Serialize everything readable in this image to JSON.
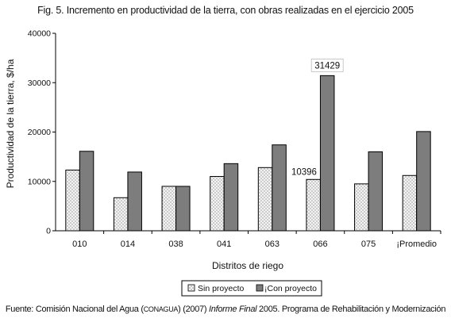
{
  "figure": {
    "title": "Fig. 5. Incremento en productividad de la tierra, con obras realizadas en el ejercicio 2005"
  },
  "source": {
    "prefix": "Fuente: Comisión Nacional del Agua (",
    "agency_abbrev": "CONAGUA",
    "middle": ") (2007) ",
    "report_title": "Informe Final",
    "suffix": " 2005. Programa de Rehabilitación y  Modernización"
  },
  "chart_data": {
    "type": "bar",
    "categories": [
      "010",
      "014",
      "038",
      "041",
      "063",
      "066",
      "075",
      "¡Promedio"
    ],
    "series": [
      {
        "name": "Sin proyecto",
        "values": [
          12300,
          6700,
          9000,
          11000,
          12800,
          10396,
          9500,
          11200
        ],
        "pattern": "dotted-light"
      },
      {
        "name": "¡Con proyecto",
        "values": [
          16100,
          11900,
          9000,
          13600,
          17400,
          31429,
          16000,
          20100
        ],
        "color": "#7d7d7d"
      }
    ],
    "xlabel": "Distritos de riego",
    "ylabel": "Productividad de la tierra, $/ha",
    "ylim": [
      0,
      40000
    ],
    "yticks": [
      "0",
      "10000",
      "20000",
      "30000",
      "40000"
    ],
    "data_labels": [
      {
        "category": "066",
        "series": "Sin proyecto",
        "text": "10396"
      },
      {
        "category": "066",
        "series": "¡Con proyecto",
        "text": "31429",
        "boxed": true
      }
    ],
    "grid": false,
    "legend": "bottom-center"
  }
}
